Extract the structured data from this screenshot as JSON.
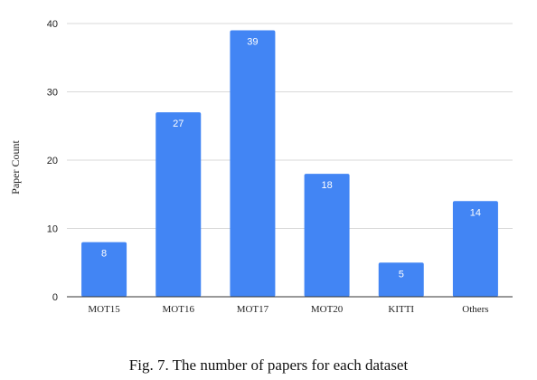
{
  "chart_data": {
    "type": "bar",
    "categories": [
      "MOT15",
      "MOT16",
      "MOT17",
      "MOT20",
      "KITTI",
      "Others"
    ],
    "values": [
      8,
      27,
      39,
      18,
      5,
      14
    ],
    "data_labels": [
      "8",
      "27",
      "39",
      "18",
      "5",
      "14"
    ],
    "ylabel": "Paper Count",
    "xlabel": "",
    "ylim": [
      0,
      40
    ],
    "yticks": [
      0,
      10,
      20,
      30,
      40
    ],
    "ytick_labels": [
      "0",
      "10",
      "20",
      "30",
      "40"
    ],
    "grid": "horizontal",
    "bar_color": "#4285f4",
    "gridline_color": "#d9d9d9",
    "axis_color": "#333333"
  },
  "caption": "Fig. 7.  The number of papers for each dataset"
}
